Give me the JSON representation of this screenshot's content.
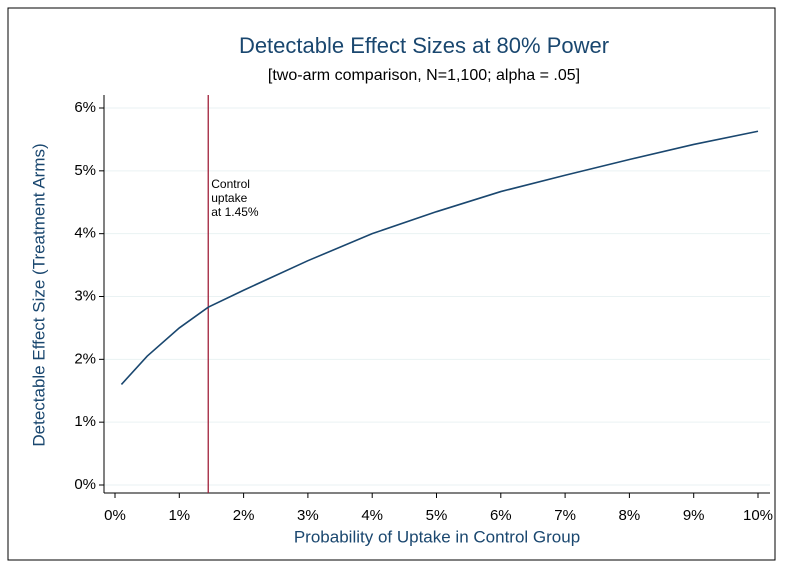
{
  "chart_data": {
    "type": "line",
    "title": "Detectable Effect Sizes at 80% Power",
    "subtitle": "[two-arm comparison, N=1,100; alpha = .05]",
    "x_label": "Probability of Uptake in Control Group",
    "y_label": "Detectable Effect Size (Treatment Arms)",
    "series": [
      {
        "color": "#1a476f",
        "x": [
          0.1,
          0.5,
          1,
          1.45,
          2,
          3,
          4,
          5,
          6,
          7,
          8,
          9,
          10
        ],
        "values": [
          1.6,
          2.05,
          2.5,
          2.83,
          3.1,
          3.57,
          4.0,
          4.35,
          4.67,
          4.93,
          5.18,
          5.42,
          5.63
        ]
      }
    ],
    "xline": {
      "value": 1.45,
      "color": "#a0203a",
      "annotation": [
        "Control",
        "uptake",
        "at 1.45%"
      ]
    },
    "xlim": [
      0,
      10
    ],
    "ylim": [
      0,
      6
    ],
    "xticks": [
      {
        "value": 0,
        "label": "0%"
      },
      {
        "value": 1,
        "label": "1%"
      },
      {
        "value": 2,
        "label": "2%"
      },
      {
        "value": 3,
        "label": "3%"
      },
      {
        "value": 4,
        "label": "4%"
      },
      {
        "value": 5,
        "label": "5%"
      },
      {
        "value": 6,
        "label": "6%"
      },
      {
        "value": 7,
        "label": "7%"
      },
      {
        "value": 8,
        "label": "8%"
      },
      {
        "value": 9,
        "label": "9%"
      },
      {
        "value": 10,
        "label": "10%"
      }
    ],
    "yticks": [
      {
        "value": 0,
        "label": "0%"
      },
      {
        "value": 1,
        "label": "1%"
      },
      {
        "value": 2,
        "label": "2%"
      },
      {
        "value": 3,
        "label": "3%"
      },
      {
        "value": 4,
        "label": "4%"
      },
      {
        "value": 5,
        "label": "5%"
      },
      {
        "value": 6,
        "label": "6%"
      }
    ],
    "grid": true
  }
}
